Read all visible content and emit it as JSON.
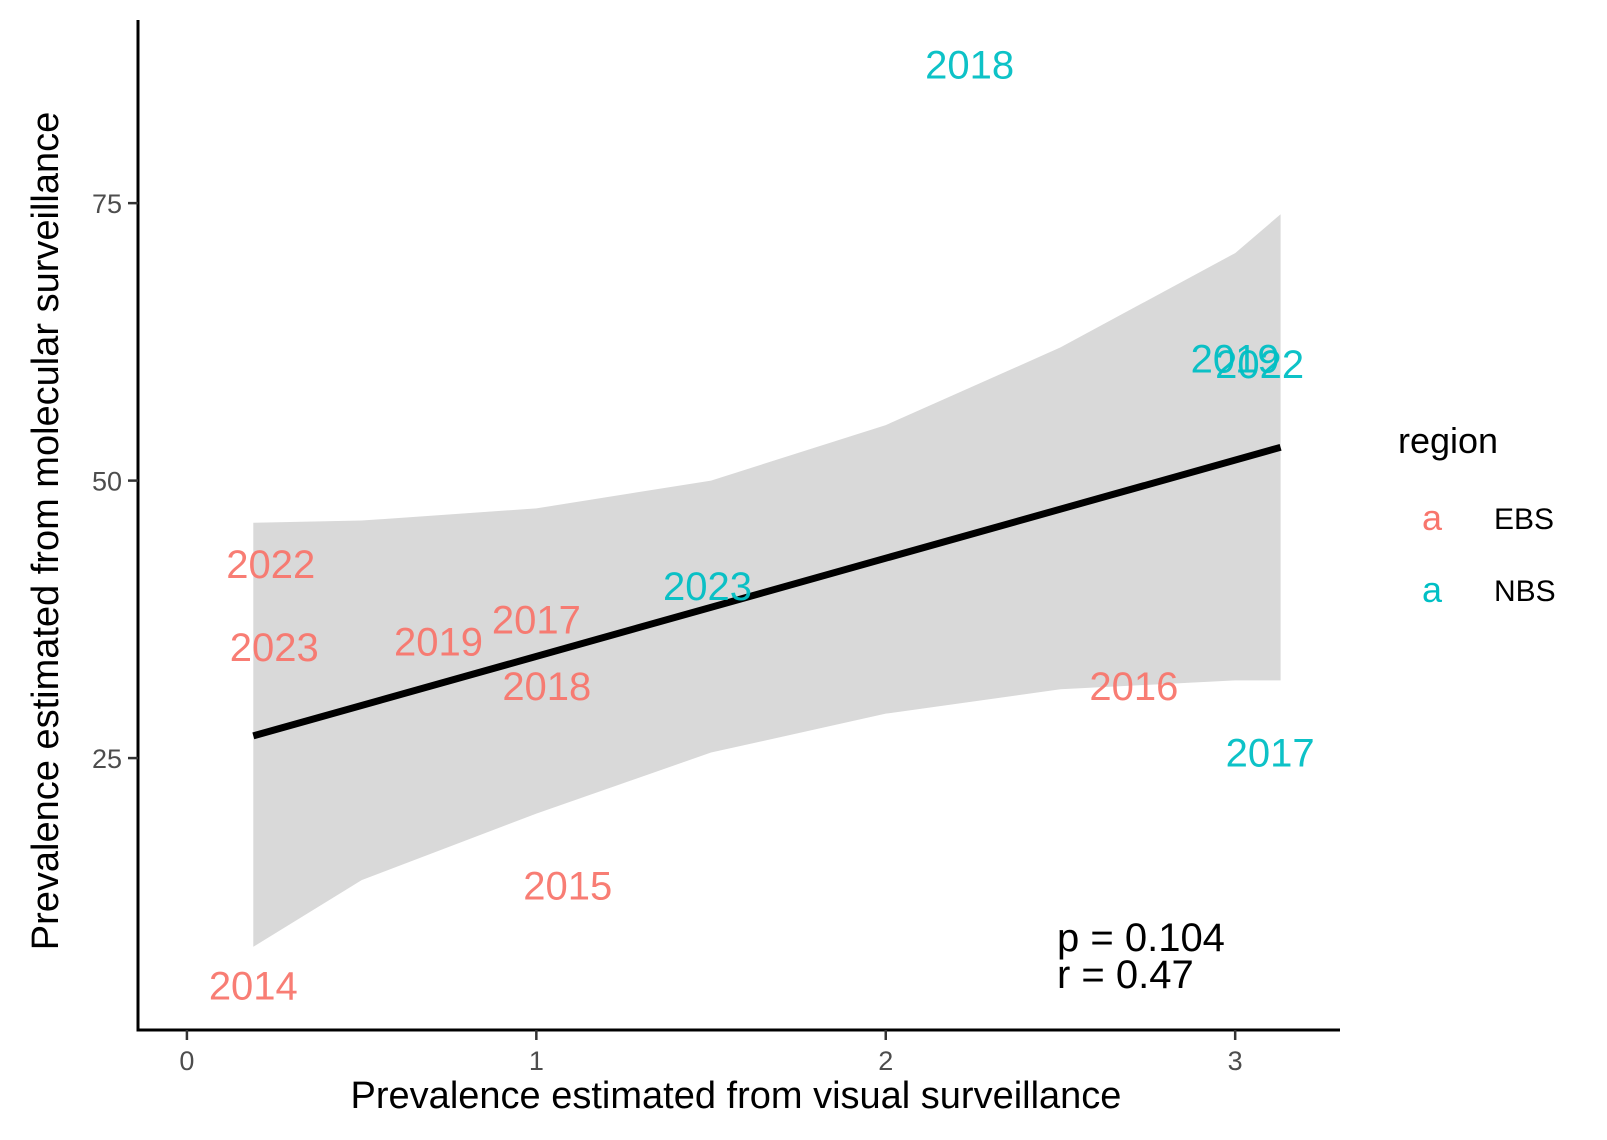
{
  "chart_data": {
    "type": "scatter",
    "xlabel": "Prevalence estimated from visual surveillance",
    "ylabel": "Prevalence estimated from molecular surveillance",
    "xlim": [
      -0.14,
      3.3
    ],
    "ylim": [
      0.5,
      91.5
    ],
    "x_ticks": [
      0,
      1,
      2,
      3
    ],
    "y_ticks": [
      25,
      50,
      75
    ],
    "x_tick_labels": [
      "0",
      "1",
      "2",
      "3"
    ],
    "y_tick_labels": [
      "25",
      "50",
      "75"
    ],
    "grid": false,
    "legend": {
      "title": "region",
      "placement": "right",
      "key_glyph": "a",
      "entries": [
        {
          "name": "EBS",
          "color": "#F8766D"
        },
        {
          "name": "NBS",
          "color": "#00BFC4"
        }
      ]
    },
    "series": [
      {
        "name": "EBS",
        "color": "#F8766D",
        "points": [
          {
            "label": "2014",
            "x": 0.19,
            "y": 4.5
          },
          {
            "label": "2015",
            "x": 1.09,
            "y": 13.5
          },
          {
            "label": "2016",
            "x": 2.71,
            "y": 31.5
          },
          {
            "label": "2017",
            "x": 1.0,
            "y": 37.5
          },
          {
            "label": "2018",
            "x": 1.03,
            "y": 31.5
          },
          {
            "label": "2019",
            "x": 0.72,
            "y": 35.5
          },
          {
            "label": "2022",
            "x": 0.24,
            "y": 42.5
          },
          {
            "label": "2023",
            "x": 0.25,
            "y": 35
          }
        ]
      },
      {
        "name": "NBS",
        "color": "#00BFC4",
        "points": [
          {
            "label": "2017",
            "x": 3.1,
            "y": 25.5
          },
          {
            "label": "2018",
            "x": 2.24,
            "y": 87.5
          },
          {
            "label": "2019",
            "x": 3.0,
            "y": 61
          },
          {
            "label": "2022",
            "x": 3.07,
            "y": 60.5
          },
          {
            "label": "2023",
            "x": 1.49,
            "y": 40.5
          }
        ]
      }
    ],
    "fit": {
      "color": "#000000",
      "band_color": "#d9d9d9",
      "x": [
        0.19,
        3.13
      ],
      "y": [
        27,
        53
      ],
      "band_x": [
        0.19,
        0.5,
        1.0,
        1.5,
        2.0,
        2.5,
        3.0,
        3.13
      ],
      "band_lower": [
        8,
        14,
        20,
        25.5,
        29,
        31.2,
        32,
        32
      ],
      "band_upper": [
        46.2,
        46.4,
        47.5,
        50,
        55,
        62,
        70.5,
        74
      ]
    },
    "annotations": [
      "p = 0.104",
      "r = 0.47"
    ]
  }
}
